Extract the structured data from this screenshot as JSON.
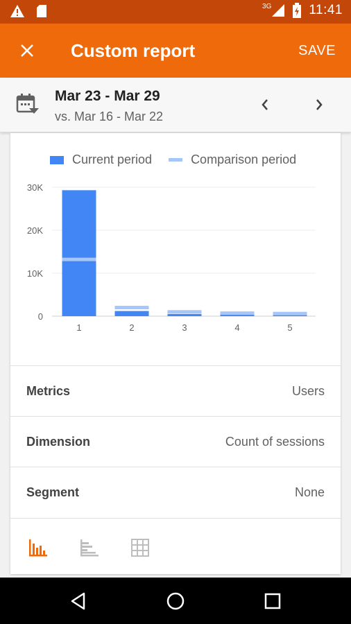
{
  "status_bar": {
    "icons": [
      "warning-icon",
      "sd-card-icon",
      "signal-3g-icon",
      "battery-charging-icon"
    ],
    "network": "3G",
    "time": "11:41"
  },
  "app_bar": {
    "close_icon": "close-icon",
    "title": "Custom report",
    "save_label": "SAVE"
  },
  "date_bar": {
    "icon": "calendar-icon",
    "range": "Mar 23 - Mar 29",
    "comparison": "vs. Mar 16 - Mar 22",
    "prev_icon": "chevron-left-icon",
    "next_icon": "chevron-right-icon"
  },
  "chart_data": {
    "type": "bar",
    "legend": [
      "Current period",
      "Comparison period"
    ],
    "categories": [
      "1",
      "2",
      "3",
      "4",
      "5"
    ],
    "series": [
      {
        "name": "Current period",
        "values": [
          29300,
          1200,
          500,
          350,
          300
        ],
        "color": "#4285f4"
      },
      {
        "name": "Comparison period",
        "values": [
          13200,
          2000,
          1000,
          700,
          600
        ],
        "color": "#a6c6f8"
      }
    ],
    "ylim": [
      0,
      30000
    ],
    "yticks": [
      0,
      10000,
      20000,
      30000
    ],
    "ytick_labels": [
      "0",
      "10K",
      "20K",
      "30K"
    ],
    "grid": true
  },
  "settings": [
    {
      "key": "Metrics",
      "value": "Users"
    },
    {
      "key": "Dimension",
      "value": "Count of sessions"
    },
    {
      "key": "Segment",
      "value": "None"
    }
  ],
  "view_modes": {
    "icons": [
      "bar-chart-icon",
      "horizontal-bar-chart-icon",
      "table-icon"
    ],
    "active": "bar-chart-icon",
    "active_color": "#ee6a0b",
    "inactive_color": "#bdbdbd"
  },
  "nav_bar": {
    "icons": [
      "back-icon",
      "home-icon",
      "recents-icon"
    ]
  },
  "colors": {
    "status_bar": "#c24708",
    "app_bar": "#ee6a0b",
    "current": "#4285f4",
    "comparison": "#a6c6f8"
  }
}
